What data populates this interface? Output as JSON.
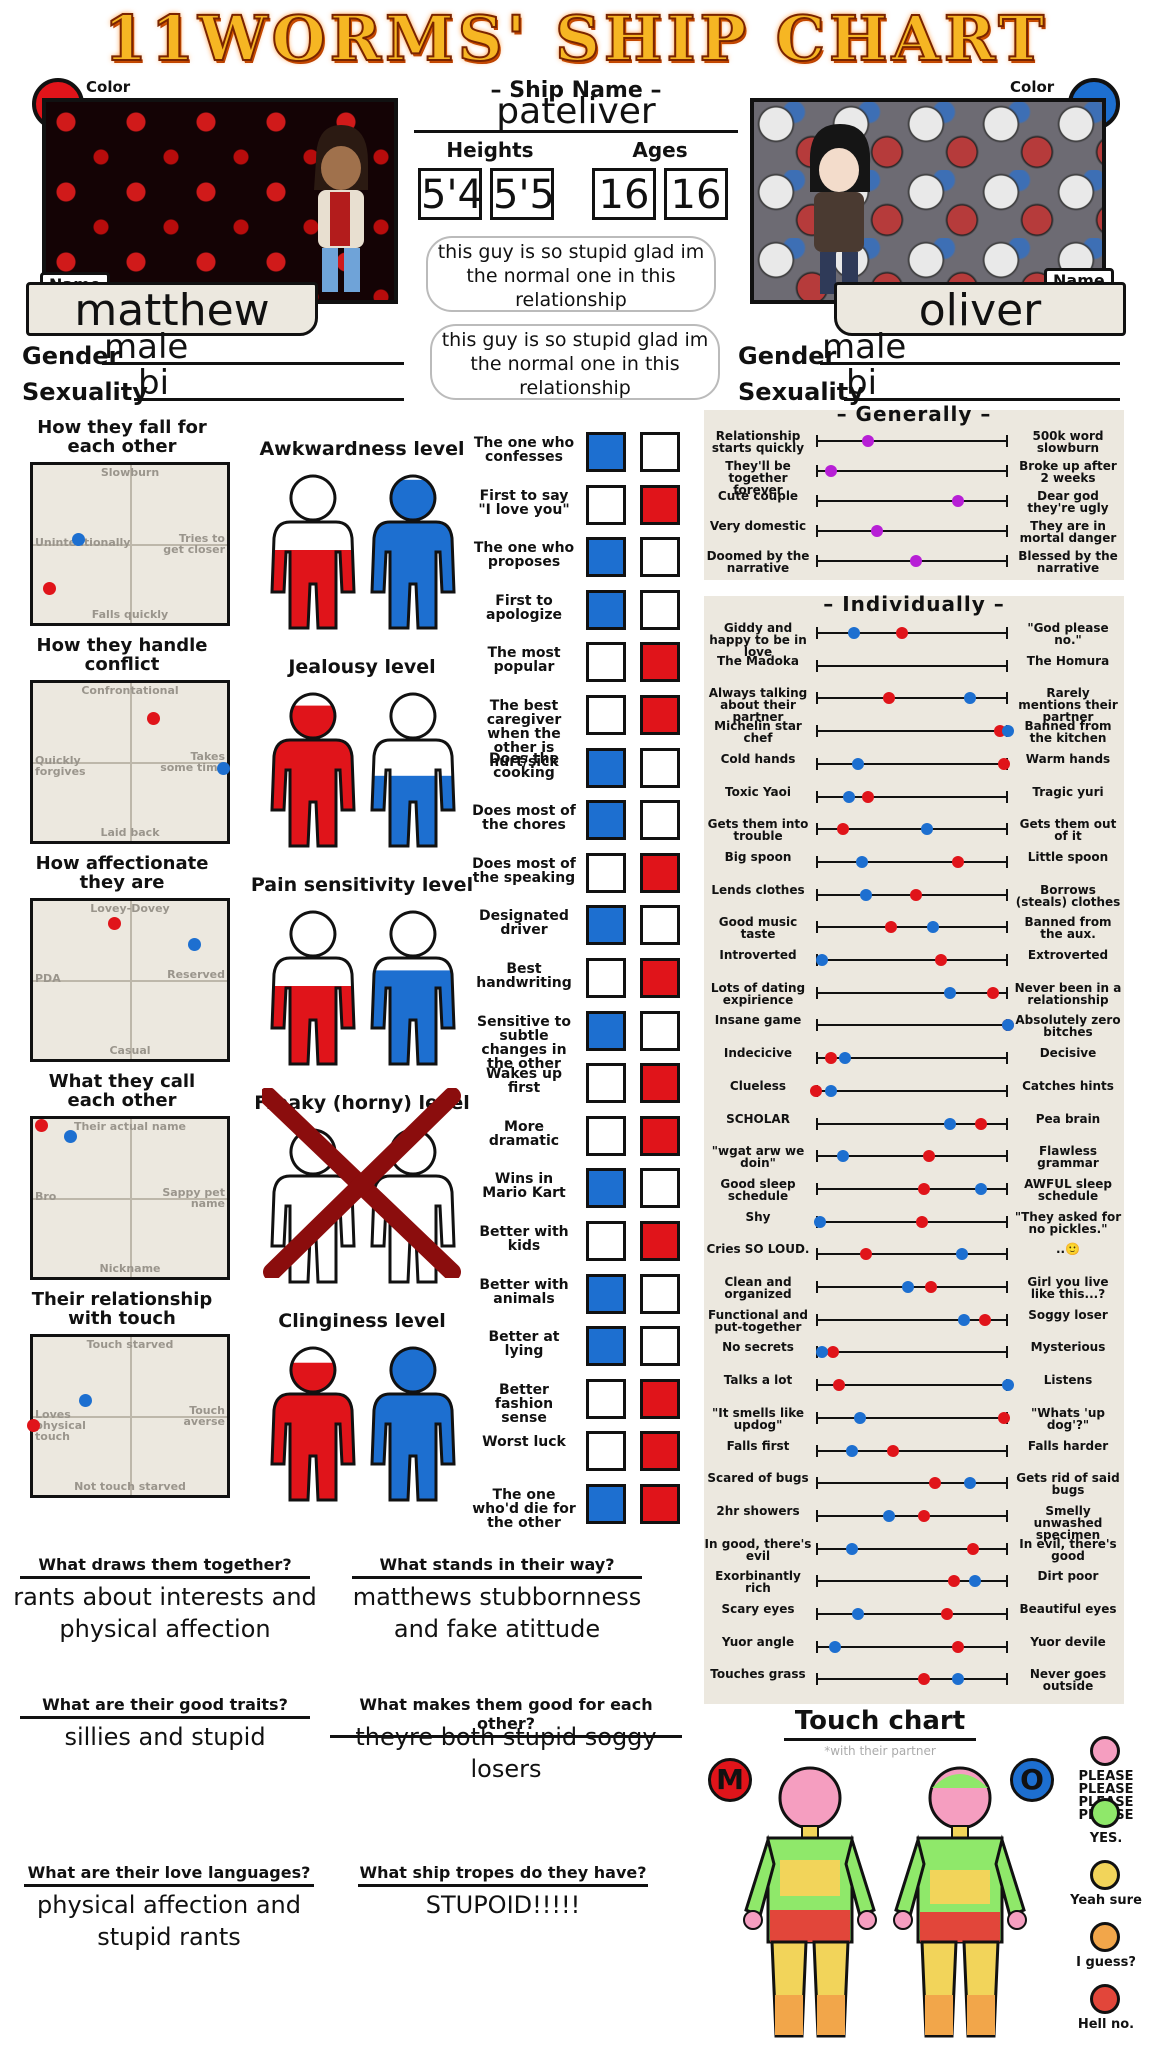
{
  "title": "11WORMS' SHIP CHART",
  "ship": {
    "name_label": "Ship Name",
    "name": "pateliver",
    "heights_label": "Heights",
    "ages_label": "Ages",
    "heights": [
      "5'4",
      "5'5"
    ],
    "ages": [
      "16",
      "16"
    ],
    "bubbles": [
      "this guy is so stupid glad im the normal one in this relationship",
      "this guy is so stupid glad im the normal one in this relationship"
    ]
  },
  "left": {
    "color_label": "Color",
    "color": "#e0141a",
    "name_tag": "Name",
    "name": "matthew",
    "gender_label": "Gender",
    "gender": "male",
    "sexuality_label": "Sexuality",
    "sexuality": "bi"
  },
  "right": {
    "color_label": "Color",
    "color": "#1d6fd0",
    "name_tag": "Name",
    "name": "oliver",
    "gender_label": "Gender",
    "gender": "male",
    "sexuality_label": "Sexuality",
    "sexuality": "bi"
  },
  "colors": {
    "red": "#e0141a",
    "blue": "#1d6fd0",
    "panel_bg": "#ece8df",
    "purple": "#b71fd6"
  },
  "quadrants": [
    {
      "title": "How they fall for each other",
      "top": "Slowburn",
      "bottom": "Falls quickly",
      "left": "Unintentionally",
      "right": "Tries to get closer",
      "red": [
        0.08,
        0.22
      ],
      "blue": [
        0.23,
        0.53
      ]
    },
    {
      "title": "How they handle conflict",
      "top": "Confrontational",
      "bottom": "Laid back",
      "left": "Quickly forgives",
      "right": "Takes some time",
      "red": [
        0.62,
        0.78
      ],
      "blue": [
        0.98,
        0.46
      ]
    },
    {
      "title": "How affectionate they are",
      "top": "Lovey-Dovey",
      "bottom": "Casual",
      "left": "PDA",
      "right": "Reserved",
      "red": [
        0.42,
        0.86
      ],
      "blue": [
        0.83,
        0.73
      ]
    },
    {
      "title": "What they call each other",
      "top": "Their actual name",
      "bottom": "Nickname",
      "left": "Bro",
      "right": "Sappy pet name",
      "red": [
        0.04,
        0.96
      ],
      "blue": [
        0.19,
        0.89
      ]
    },
    {
      "title": "Their relationship with touch",
      "top": "Touch starved",
      "bottom": "Not touch starved",
      "left": "Loves physical touch",
      "right": "Touch averse",
      "red": [
        0.0,
        0.44
      ],
      "blue": [
        0.27,
        0.6
      ]
    }
  ],
  "levels": [
    {
      "title": "Awkwardness level",
      "red": 0.5,
      "blue": 0.95
    },
    {
      "title": "Jealousy level",
      "red": 0.9,
      "blue": 0.45
    },
    {
      "title": "Pain sensitivity level",
      "red": 0.5,
      "blue": 0.6
    },
    {
      "title": "Freaky (horny) level",
      "crossed": true
    },
    {
      "title": "Clinginess level",
      "red": 0.88,
      "blue": 1.0
    }
  ],
  "who": [
    {
      "label": "The one who confesses",
      "pick": "blue"
    },
    {
      "label": "First to say \"I love you\"",
      "pick": "red"
    },
    {
      "label": "The one who proposes",
      "pick": "blue"
    },
    {
      "label": "First to apologize",
      "pick": "blue"
    },
    {
      "label": "The most popular",
      "pick": "red"
    },
    {
      "label": "The best caregiver when the other is hurt/sick",
      "pick": "red"
    },
    {
      "label": "Does the cooking",
      "pick": "blue"
    },
    {
      "label": "Does most of the chores",
      "pick": "blue"
    },
    {
      "label": "Does most of the speaking",
      "pick": "red"
    },
    {
      "label": "Designated driver",
      "pick": "blue"
    },
    {
      "label": "Best handwriting",
      "pick": "red"
    },
    {
      "label": "Sensitive to subtle changes in the other",
      "pick": "blue"
    },
    {
      "label": "Wakes up first",
      "pick": "red"
    },
    {
      "label": "More dramatic",
      "pick": "red"
    },
    {
      "label": "Wins in Mario Kart",
      "pick": "blue"
    },
    {
      "label": "Better with kids",
      "pick": "red"
    },
    {
      "label": "Better with animals",
      "pick": "blue"
    },
    {
      "label": "Better at lying",
      "pick": "blue"
    },
    {
      "label": "Better fashion sense",
      "pick": "red"
    },
    {
      "label": "Worst luck",
      "pick": "red"
    },
    {
      "label": "The one who'd die for the other",
      "pick": "both"
    }
  ],
  "generally": {
    "title": "Generally",
    "rows": [
      {
        "left": "Relationship starts quickly",
        "right": "500k word slowburn",
        "value": 0.27
      },
      {
        "left": "They'll be together forever",
        "right": "Broke up after 2 weeks",
        "value": 0.08
      },
      {
        "left": "Cute couple",
        "right": "Dear god they're ugly",
        "value": 0.74
      },
      {
        "left": "Very domestic",
        "right": "They are in mortal danger",
        "value": 0.32
      },
      {
        "left": "Doomed by the narrative",
        "right": "Blessed by the narrative",
        "value": 0.52
      }
    ]
  },
  "individually": {
    "title": "Individually",
    "rows": [
      {
        "left": "Giddy and happy to be in love",
        "right": "\"God please no.\"",
        "red": 0.45,
        "blue": 0.2
      },
      {
        "left": "The Madoka",
        "right": "The Homura",
        "red": null,
        "blue": null
      },
      {
        "left": "Always talking about their partner",
        "right": "Rarely mentions their partner",
        "red": 0.38,
        "blue": 0.8
      },
      {
        "left": "Michelin star chef",
        "right": "Banned from the kitchen",
        "red": 0.96,
        "blue": 1.0
      },
      {
        "left": "Cold hands",
        "right": "Warm hands",
        "red": 0.98,
        "blue": 0.22
      },
      {
        "left": "Toxic Yaoi",
        "right": "Tragic yuri",
        "red": 0.27,
        "blue": 0.17
      },
      {
        "left": "Gets them into trouble",
        "right": "Gets them out of it",
        "red": 0.14,
        "blue": 0.58
      },
      {
        "left": "Big spoon",
        "right": "Little spoon",
        "red": 0.74,
        "blue": 0.24
      },
      {
        "left": "Lends clothes",
        "right": "Borrows (steals) clothes",
        "red": 0.52,
        "blue": 0.26
      },
      {
        "left": "Good music taste",
        "right": "Banned from the aux.",
        "red": 0.39,
        "blue": 0.61
      },
      {
        "left": "Introverted",
        "right": "Extroverted",
        "red": 0.65,
        "blue": 0.03
      },
      {
        "left": "Lots of dating expirience",
        "right": "Never been in a relationship",
        "red": 0.92,
        "blue": 0.7
      },
      {
        "left": "Insane game",
        "right": "Absolutely zero bitches",
        "red": 1.0,
        "blue": 1.0
      },
      {
        "left": "Indecicive",
        "right": "Decisive",
        "red": 0.08,
        "blue": 0.15
      },
      {
        "left": "Clueless",
        "right": "Catches hints",
        "red": 0.0,
        "blue": 0.08
      },
      {
        "left": "SCHOLAR",
        "right": "Pea brain",
        "red": 0.86,
        "blue": 0.7
      },
      {
        "left": "\"wgat arw we doin\"",
        "right": "Flawless grammar",
        "red": 0.59,
        "blue": 0.14
      },
      {
        "left": "Good sleep schedule",
        "right": "AWFUL sleep schedule",
        "red": 0.56,
        "blue": 0.86
      },
      {
        "left": "Shy",
        "right": "\"They asked for no pickles.\"",
        "red": 0.55,
        "blue": 0.02
      },
      {
        "left": "Cries SO LOUD.",
        "right": "..🙂",
        "red": 0.26,
        "blue": 0.76
      },
      {
        "left": "Clean and organized",
        "right": "Girl you live like this...?",
        "red": 0.6,
        "blue": 0.48
      },
      {
        "left": "Functional and put-together",
        "right": "Soggy loser",
        "red": 0.88,
        "blue": 0.77
      },
      {
        "left": "No secrets",
        "right": "Mysterious",
        "red": 0.09,
        "blue": 0.03
      },
      {
        "left": "Talks a lot",
        "right": "Listens",
        "red": 0.12,
        "blue": 1.0
      },
      {
        "left": "\"It smells like updog\"",
        "right": "\"Whats 'up dog'?\"",
        "red": 0.98,
        "blue": 0.23
      },
      {
        "left": "Falls first",
        "right": "Falls harder",
        "red": 0.4,
        "blue": 0.19
      },
      {
        "left": "Scared of bugs",
        "right": "Gets rid of said bugs",
        "red": 0.62,
        "blue": 0.8
      },
      {
        "left": "2hr showers",
        "right": "Smelly unwashed specimen",
        "red": 0.56,
        "blue": 0.38
      },
      {
        "left": "In good, there's evil",
        "right": "In evil, there's good",
        "red": 0.82,
        "blue": 0.19
      },
      {
        "left": "Exorbinantly rich",
        "right": "Dirt poor",
        "red": 0.72,
        "blue": 0.83
      },
      {
        "left": "Scary eyes",
        "right": "Beautiful eyes",
        "red": 0.68,
        "blue": 0.22
      },
      {
        "left": "Yuor angle",
        "right": "Yuor devile",
        "red": 0.74,
        "blue": 0.1
      },
      {
        "left": "Touches grass",
        "right": "Never goes outside",
        "red": 0.56,
        "blue": 0.74
      }
    ]
  },
  "questions": [
    {
      "q": "What draws them together?",
      "a": "rants about interests and physical affection"
    },
    {
      "q": "What stands in their way?",
      "a": "matthews stubbornness and fake atittude"
    },
    {
      "q": "What are their good traits?",
      "a": "sillies and stupid"
    },
    {
      "q": "What makes them good for each other?",
      "a": "theyre both stupid soggy losers"
    },
    {
      "q": "What are their love languages?",
      "a": "physical affection and stupid rants"
    },
    {
      "q": "What ship tropes do they have?",
      "a": "STUPOID!!!!!"
    }
  ],
  "touch": {
    "title": "Touch chart",
    "subtitle": "*with their partner",
    "left_initial": "M",
    "right_initial": "O",
    "legend": [
      {
        "label": "PLEASE PLEASE PLEASE PLEASE",
        "color": "#f59ec0"
      },
      {
        "label": "YES.",
        "color": "#8fe86a"
      },
      {
        "label": "Yeah sure",
        "color": "#f2d45a"
      },
      {
        "label": "I guess?",
        "color": "#f2a64a"
      },
      {
        "label": "Hell no.",
        "color": "#e2463a"
      }
    ]
  }
}
